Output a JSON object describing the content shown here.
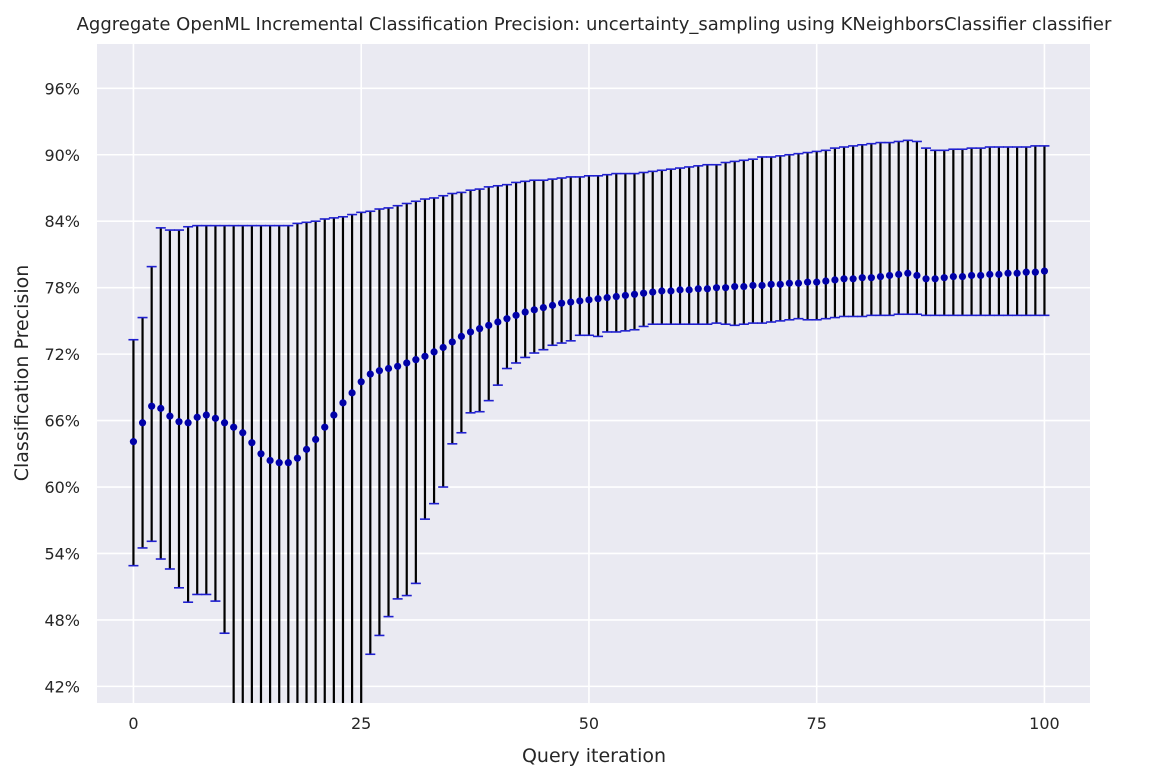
{
  "chart_data": {
    "type": "errorbar",
    "title": "Aggregate OpenML Incremental Classification Precision: uncertainty_sampling using KNeighborsClassifier classifier",
    "xlabel": "Query iteration",
    "ylabel": "Classification Precision",
    "xlim": [
      -4,
      105
    ],
    "ylim": [
      0.405,
      1.0
    ],
    "x_ticks": [
      0,
      25,
      50,
      75,
      100
    ],
    "x_tick_labels": [
      "0",
      "25",
      "50",
      "75",
      "100"
    ],
    "y_ticks": [
      0.42,
      0.48,
      0.54,
      0.6,
      0.66,
      0.72,
      0.78,
      0.84,
      0.9,
      0.96
    ],
    "y_tick_labels": [
      "42%",
      "48%",
      "54%",
      "60%",
      "66%",
      "72%",
      "78%",
      "84%",
      "90%",
      "96%"
    ],
    "grid": true,
    "colors": {
      "background": "#eaeaf2",
      "grid": "#ffffff",
      "marker": "#0000a8",
      "cap": "#1f1fd0",
      "bar": "#000000"
    },
    "series": [
      {
        "x": [
          0,
          1,
          2,
          3,
          4,
          5,
          6,
          7,
          8,
          9,
          10,
          11,
          12,
          13,
          14,
          15,
          16,
          17,
          18,
          19,
          20,
          21,
          22,
          23,
          24,
          25,
          26,
          27,
          28,
          29,
          30,
          31,
          32,
          33,
          34,
          35,
          36,
          37,
          38,
          39,
          40,
          41,
          42,
          43,
          44,
          45,
          46,
          47,
          48,
          49,
          50,
          51,
          52,
          53,
          54,
          55,
          56,
          57,
          58,
          59,
          60,
          61,
          62,
          63,
          64,
          65,
          66,
          67,
          68,
          69,
          70,
          71,
          72,
          73,
          74,
          75,
          76,
          77,
          78,
          79,
          80,
          81,
          82,
          83,
          84,
          85,
          86,
          87,
          88,
          89,
          90,
          91,
          92,
          93,
          94,
          95,
          96,
          97,
          98,
          99,
          100
        ],
        "mean": [
          0.641,
          0.658,
          0.673,
          0.671,
          0.664,
          0.659,
          0.658,
          0.663,
          0.665,
          0.662,
          0.658,
          0.654,
          0.649,
          0.64,
          0.63,
          0.624,
          0.622,
          0.622,
          0.626,
          0.634,
          0.643,
          0.654,
          0.665,
          0.676,
          0.685,
          0.695,
          0.702,
          0.705,
          0.707,
          0.709,
          0.712,
          0.715,
          0.718,
          0.722,
          0.726,
          0.731,
          0.736,
          0.74,
          0.743,
          0.746,
          0.749,
          0.752,
          0.755,
          0.758,
          0.76,
          0.762,
          0.764,
          0.766,
          0.767,
          0.768,
          0.769,
          0.77,
          0.771,
          0.772,
          0.773,
          0.774,
          0.775,
          0.776,
          0.777,
          0.777,
          0.778,
          0.778,
          0.779,
          0.779,
          0.78,
          0.78,
          0.781,
          0.781,
          0.782,
          0.782,
          0.783,
          0.783,
          0.784,
          0.784,
          0.785,
          0.785,
          0.786,
          0.787,
          0.788,
          0.788,
          0.789,
          0.789,
          0.79,
          0.791,
          0.792,
          0.793,
          0.791,
          0.788,
          0.788,
          0.789,
          0.79,
          0.79,
          0.791,
          0.791,
          0.792,
          0.792,
          0.793,
          0.793,
          0.794,
          0.794,
          0.795
        ],
        "upper": [
          0.733,
          0.753,
          0.799,
          0.834,
          0.832,
          0.832,
          0.835,
          0.836,
          0.836,
          0.836,
          0.836,
          0.836,
          0.836,
          0.836,
          0.836,
          0.836,
          0.836,
          0.836,
          0.838,
          0.839,
          0.84,
          0.842,
          0.843,
          0.844,
          0.846,
          0.848,
          0.849,
          0.851,
          0.852,
          0.854,
          0.856,
          0.858,
          0.86,
          0.861,
          0.863,
          0.865,
          0.866,
          0.868,
          0.869,
          0.871,
          0.872,
          0.873,
          0.875,
          0.876,
          0.877,
          0.877,
          0.878,
          0.879,
          0.88,
          0.88,
          0.881,
          0.881,
          0.882,
          0.883,
          0.883,
          0.883,
          0.884,
          0.885,
          0.886,
          0.887,
          0.888,
          0.889,
          0.89,
          0.891,
          0.891,
          0.893,
          0.894,
          0.895,
          0.896,
          0.898,
          0.898,
          0.899,
          0.9,
          0.901,
          0.902,
          0.903,
          0.904,
          0.906,
          0.907,
          0.908,
          0.909,
          0.91,
          0.911,
          0.911,
          0.912,
          0.913,
          0.912,
          0.906,
          0.904,
          0.904,
          0.905,
          0.905,
          0.906,
          0.906,
          0.907,
          0.907,
          0.907,
          0.907,
          0.907,
          0.908,
          0.908
        ],
        "lower": [
          0.529,
          0.545,
          0.551,
          0.535,
          0.526,
          0.509,
          0.496,
          0.503,
          0.503,
          0.497,
          0.468,
          0.38,
          0.38,
          0.38,
          0.38,
          0.38,
          0.38,
          0.38,
          0.38,
          0.38,
          0.38,
          0.38,
          0.38,
          0.38,
          0.38,
          0.38,
          0.449,
          0.466,
          0.483,
          0.499,
          0.502,
          0.513,
          0.571,
          0.585,
          0.6,
          0.639,
          0.649,
          0.667,
          0.668,
          0.678,
          0.692,
          0.707,
          0.712,
          0.717,
          0.721,
          0.724,
          0.728,
          0.73,
          0.732,
          0.737,
          0.737,
          0.736,
          0.74,
          0.74,
          0.741,
          0.742,
          0.745,
          0.747,
          0.747,
          0.747,
          0.747,
          0.747,
          0.747,
          0.747,
          0.748,
          0.747,
          0.746,
          0.747,
          0.748,
          0.748,
          0.749,
          0.75,
          0.751,
          0.752,
          0.751,
          0.751,
          0.752,
          0.753,
          0.754,
          0.754,
          0.754,
          0.755,
          0.755,
          0.755,
          0.756,
          0.756,
          0.756,
          0.755,
          0.755,
          0.755,
          0.755,
          0.755,
          0.755,
          0.755,
          0.755,
          0.755,
          0.755,
          0.755,
          0.755,
          0.755,
          0.755
        ]
      }
    ]
  }
}
